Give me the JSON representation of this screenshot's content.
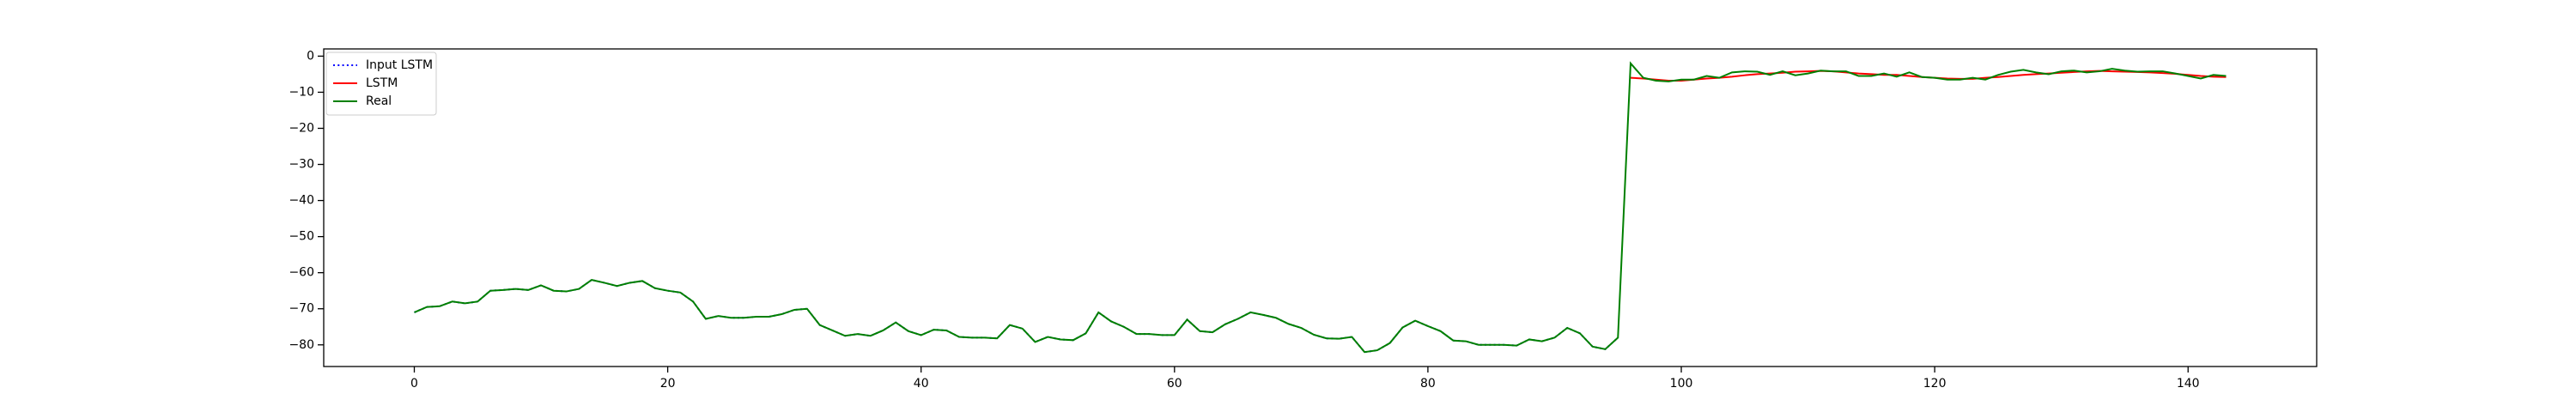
{
  "chart_data": {
    "type": "line",
    "x": [
      0,
      1,
      2,
      3,
      4,
      5,
      6,
      7,
      8,
      9,
      10,
      11,
      12,
      13,
      14,
      15,
      16,
      17,
      18,
      19,
      20,
      21,
      22,
      23,
      24,
      25,
      26,
      27,
      28,
      29,
      30,
      31,
      32,
      33,
      34,
      35,
      36,
      37,
      38,
      39,
      40,
      41,
      42,
      43,
      44,
      45,
      46,
      47,
      48,
      49,
      50,
      51,
      52,
      53,
      54,
      55,
      56,
      57,
      58,
      59,
      60,
      61,
      62,
      63,
      64,
      65,
      66,
      67,
      68,
      69,
      70,
      71,
      72,
      73,
      74,
      75,
      76,
      77,
      78,
      79,
      80,
      81,
      82,
      83,
      84,
      85,
      86,
      87,
      88,
      89,
      90,
      91,
      92,
      93,
      94,
      95,
      96,
      97,
      98,
      99,
      100,
      101,
      102,
      103,
      104,
      105,
      106,
      107,
      108,
      109,
      110,
      111,
      112,
      113,
      114,
      115,
      116,
      117,
      118,
      119,
      120,
      121,
      122,
      123,
      124,
      125,
      126,
      127,
      128,
      129,
      130,
      131,
      132,
      133,
      134,
      135,
      136,
      137,
      138,
      139,
      140,
      141,
      142,
      143
    ],
    "series": [
      {
        "name": "Input LSTM",
        "color": "#0000ff",
        "linestyle": "dotted",
        "values": [
          -71,
          -69.5,
          -69.3,
          -68,
          -68.5,
          -68,
          -65,
          -64.8,
          -64.5,
          -64.8,
          -63.5,
          -65,
          -65.2,
          -64.5,
          -62,
          -62.8,
          -63.7,
          -62.8,
          -62.3,
          -64.3,
          -65,
          -65.5,
          -68,
          -72.8,
          -72,
          -72.5,
          -72.5,
          -72.2,
          -72.2,
          -71.5,
          -70.3,
          -70,
          -74.5,
          -76,
          -77.5,
          -77,
          -77.5,
          -76,
          -73.8,
          -76.2,
          -77.3,
          -75.8,
          -76,
          -77.8,
          -78,
          -78,
          -78.2,
          -74.5,
          -75.5,
          -79.2,
          -77.8,
          -78.5,
          -78.7,
          -76.8,
          -71,
          -73.5,
          -75,
          -77,
          -77,
          -77.3,
          -77.3,
          -73,
          -76.2,
          -76.5,
          -74.3,
          -72.8,
          -71,
          -71.7,
          -72.5,
          -74.2,
          -75.3,
          -77.2,
          -78.2,
          -78.3,
          -77.8,
          -82,
          -81.5,
          -79.5,
          -75.2,
          -73.3,
          -74.8,
          -76.2,
          -78.8,
          -79,
          -80,
          -80,
          -80,
          -80.2,
          -78.5,
          -79,
          -78,
          -75.3,
          -76.8,
          -80.5,
          -81.2,
          -78,
          null,
          null,
          null,
          null,
          null,
          null,
          null,
          null,
          null,
          null,
          null,
          null,
          null,
          null,
          null,
          null,
          null,
          null,
          null,
          null,
          null,
          null,
          null,
          null,
          null,
          null,
          null,
          null,
          null,
          null,
          null,
          null,
          null,
          null,
          null,
          null,
          null,
          null,
          null,
          null,
          null,
          null,
          null,
          null,
          null,
          null,
          null,
          null
        ]
      },
      {
        "name": "LSTM",
        "color": "#ff0000",
        "linestyle": "solid",
        "values": [
          null,
          null,
          null,
          null,
          null,
          null,
          null,
          null,
          null,
          null,
          null,
          null,
          null,
          null,
          null,
          null,
          null,
          null,
          null,
          null,
          null,
          null,
          null,
          null,
          null,
          null,
          null,
          null,
          null,
          null,
          null,
          null,
          null,
          null,
          null,
          null,
          null,
          null,
          null,
          null,
          null,
          null,
          null,
          null,
          null,
          null,
          null,
          null,
          null,
          null,
          null,
          null,
          null,
          null,
          null,
          null,
          null,
          null,
          null,
          null,
          null,
          null,
          null,
          null,
          null,
          null,
          null,
          null,
          null,
          null,
          null,
          null,
          null,
          null,
          null,
          null,
          null,
          null,
          null,
          null,
          null,
          null,
          null,
          null,
          null,
          null,
          null,
          null,
          null,
          null,
          null,
          null,
          null,
          null,
          null,
          null,
          -6,
          -6.2,
          -6.5,
          -6.8,
          -6.8,
          -6.5,
          -6.2,
          -6,
          -5.7,
          -5.3,
          -5,
          -4.8,
          -4.6,
          -4.3,
          -4.2,
          -4.1,
          -4.2,
          -4.5,
          -4.8,
          -5,
          -5.2,
          -5.2,
          -5.5,
          -5.8,
          -6,
          -6.2,
          -6.3,
          -6.3,
          -6,
          -5.8,
          -5.5,
          -5.2,
          -5,
          -4.8,
          -4.6,
          -4.4,
          -4.2,
          -4.1,
          -4.2,
          -4.3,
          -4.4,
          -4.5,
          -4.7,
          -4.9,
          -5.2,
          -5.5,
          -5.7,
          -5.8
        ]
      },
      {
        "name": "Real",
        "color": "#008000",
        "linestyle": "solid",
        "values": [
          -71,
          -69.5,
          -69.3,
          -68,
          -68.5,
          -68,
          -65,
          -64.8,
          -64.5,
          -64.8,
          -63.5,
          -65,
          -65.2,
          -64.5,
          -62,
          -62.8,
          -63.7,
          -62.8,
          -62.3,
          -64.3,
          -65,
          -65.5,
          -68,
          -72.8,
          -72,
          -72.5,
          -72.5,
          -72.2,
          -72.2,
          -71.5,
          -70.3,
          -70,
          -74.5,
          -76,
          -77.5,
          -77,
          -77.5,
          -76,
          -73.8,
          -76.2,
          -77.3,
          -75.8,
          -76,
          -77.8,
          -78,
          -78,
          -78.2,
          -74.5,
          -75.5,
          -79.2,
          -77.8,
          -78.5,
          -78.7,
          -76.8,
          -71,
          -73.5,
          -75,
          -77,
          -77,
          -77.3,
          -77.3,
          -73,
          -76.2,
          -76.5,
          -74.3,
          -72.8,
          -71,
          -71.7,
          -72.5,
          -74.2,
          -75.3,
          -77.2,
          -78.2,
          -78.3,
          -77.8,
          -82,
          -81.5,
          -79.5,
          -75.2,
          -73.3,
          -74.8,
          -76.2,
          -78.8,
          -79,
          -80,
          -80,
          -80,
          -80.2,
          -78.5,
          -79,
          -78,
          -75.3,
          -76.8,
          -80.5,
          -81.2,
          -78,
          -2,
          -6,
          -6.8,
          -7,
          -6.5,
          -6.5,
          -5.5,
          -6,
          -4.5,
          -4.2,
          -4.3,
          -5.2,
          -4.2,
          -5.3,
          -4.8,
          -4,
          -4.2,
          -4.2,
          -5.5,
          -5.5,
          -4.8,
          -5.7,
          -4.5,
          -5.8,
          -6,
          -6.5,
          -6.5,
          -6,
          -6.5,
          -5.2,
          -4.3,
          -3.8,
          -4.5,
          -5,
          -4.2,
          -4,
          -4.5,
          -4.2,
          -3.5,
          -4,
          -4.3,
          -4.2,
          -4.2,
          -4.8,
          -5.5,
          -6.2,
          -5.2,
          -5.5
        ]
      }
    ],
    "xlim": [
      -7.15,
      150.15
    ],
    "ylim": [
      -86,
      2
    ],
    "xticks": [
      0,
      20,
      40,
      60,
      80,
      100,
      120,
      140
    ],
    "yticks": [
      0,
      {
        "value": -10,
        "label": "−10"
      },
      {
        "value": -20,
        "label": "−20"
      },
      {
        "value": -30,
        "label": "−30"
      },
      {
        "value": -40,
        "label": "−40"
      },
      {
        "value": -50,
        "label": "−50"
      },
      {
        "value": -60,
        "label": "−60"
      },
      {
        "value": -70,
        "label": "−70"
      },
      {
        "value": -80,
        "label": "−80"
      }
    ],
    "legend": "upper left"
  }
}
